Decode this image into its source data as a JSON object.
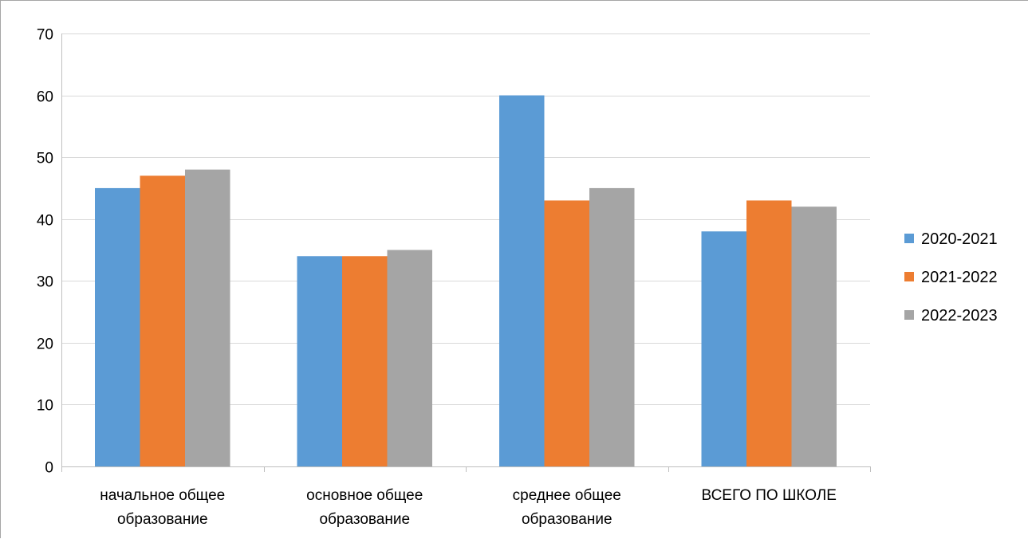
{
  "chart_data": {
    "type": "bar",
    "categories": [
      [
        "начальное общее",
        "образование"
      ],
      [
        "основное общее",
        "образование"
      ],
      [
        "среднее общее",
        "образование"
      ],
      [
        "ВСЕГО ПО ШКОЛЕ"
      ]
    ],
    "series": [
      {
        "name": "2020-2021",
        "color": "#5b9bd5",
        "values": [
          45,
          34,
          60,
          38
        ]
      },
      {
        "name": "2021-2022",
        "color": "#ed7d31",
        "values": [
          47,
          34,
          43,
          43
        ]
      },
      {
        "name": "2022-2023",
        "color": "#a5a5a5",
        "values": [
          48,
          35,
          45,
          42
        ]
      }
    ],
    "ylim": [
      0,
      70
    ],
    "yticks": [
      0,
      10,
      20,
      30,
      40,
      50,
      60,
      70
    ],
    "grid": true,
    "legend": "right",
    "title": "",
    "xlabel": "",
    "ylabel": ""
  }
}
